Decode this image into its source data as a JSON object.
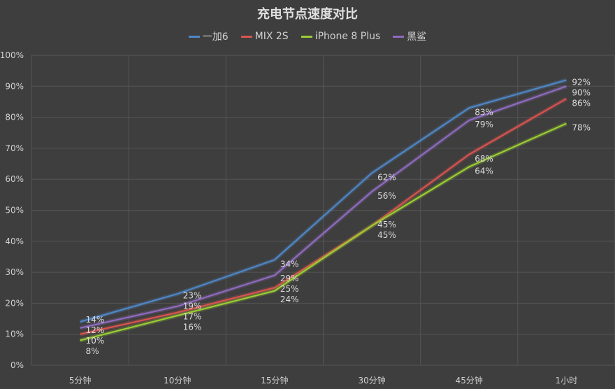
{
  "chart_data": {
    "type": "line",
    "title": "充电节点速度对比",
    "categories": [
      "5分钟",
      "10分钟",
      "15分钟",
      "30分钟",
      "45分钟",
      "1小时"
    ],
    "ylim": [
      0,
      100
    ],
    "yticks": [
      "0%",
      "10%",
      "20%",
      "30%",
      "40%",
      "50%",
      "60%",
      "70%",
      "80%",
      "90%",
      "100%"
    ],
    "grid": true,
    "legend": "top",
    "series": [
      {
        "name": "一加6",
        "color": "#4f86c6",
        "values": [
          14,
          23,
          34,
          62,
          83,
          92
        ]
      },
      {
        "name": "MIX 2S",
        "color": "#d9534f",
        "values": [
          10,
          17,
          25,
          45,
          68,
          86
        ]
      },
      {
        "name": "iPhone 8 Plus",
        "color": "#9acd32",
        "values": [
          8,
          16,
          24,
          45,
          64,
          78
        ]
      },
      {
        "name": "黑鲨",
        "color": "#8e6bbf",
        "values": [
          12,
          19,
          29,
          56,
          79,
          90
        ]
      }
    ]
  }
}
